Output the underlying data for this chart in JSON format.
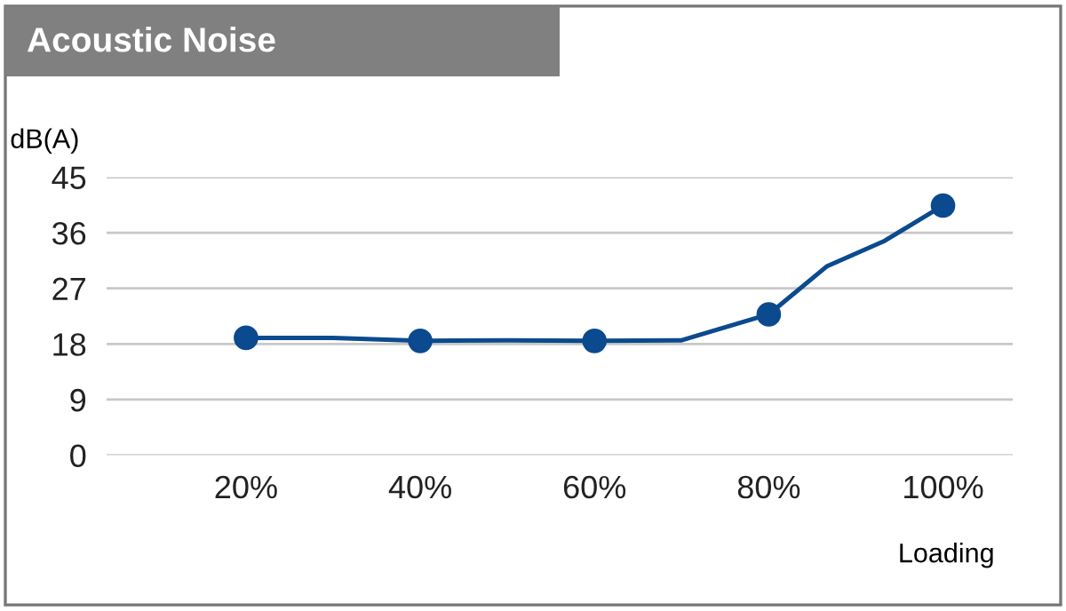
{
  "chart_data": {
    "type": "line",
    "title": "Acoustic Noise",
    "ylabel": "dB(A)",
    "xlabel": "Loading",
    "series": [
      {
        "color": "#0b4a8e",
        "marker": "none",
        "x": [
          20,
          30,
          40,
          50,
          60,
          70,
          80,
          86.7,
          93.3,
          100
        ],
        "values": [
          19.0,
          19.0,
          18.5,
          18.6,
          18.5,
          18.6,
          22.8,
          30.6,
          34.7,
          40.4
        ]
      },
      {
        "type": "scatter",
        "color": "#0b4a8e",
        "marker": "circle",
        "x": [
          20,
          40,
          60,
          80,
          100
        ],
        "values": [
          19.0,
          18.5,
          18.5,
          22.8,
          40.4
        ]
      }
    ],
    "xlim": [
      4,
      108
    ],
    "xticks": [
      {
        "value": 20,
        "label": "20%"
      },
      {
        "value": 40,
        "label": "40%"
      },
      {
        "value": 60,
        "label": "60%"
      },
      {
        "value": 80,
        "label": "80%"
      },
      {
        "value": 100,
        "label": "100%"
      }
    ],
    "ylim": [
      0,
      45
    ],
    "yticks": [
      0,
      9,
      18,
      27,
      36,
      45
    ],
    "grid": "y",
    "legend": false
  }
}
